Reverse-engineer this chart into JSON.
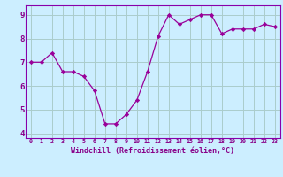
{
  "x": [
    0,
    1,
    2,
    3,
    4,
    5,
    6,
    7,
    8,
    9,
    10,
    11,
    12,
    13,
    14,
    15,
    16,
    17,
    18,
    19,
    20,
    21,
    22,
    23
  ],
  "y": [
    7.0,
    7.0,
    7.4,
    6.6,
    6.6,
    6.4,
    5.8,
    4.4,
    4.4,
    4.8,
    5.4,
    6.6,
    8.1,
    9.0,
    8.6,
    8.8,
    9.0,
    9.0,
    8.2,
    8.4,
    8.4,
    8.4,
    8.6,
    8.5
  ],
  "xlabel": "Windchill (Refroidissement éolien,°C)",
  "ylim": [
    3.8,
    9.4
  ],
  "xlim": [
    -0.5,
    23.5
  ],
  "yticks": [
    4,
    5,
    6,
    7,
    8,
    9
  ],
  "xticks": [
    0,
    1,
    2,
    3,
    4,
    5,
    6,
    7,
    8,
    9,
    10,
    11,
    12,
    13,
    14,
    15,
    16,
    17,
    18,
    19,
    20,
    21,
    22,
    23
  ],
  "line_color": "#990099",
  "marker_color": "#990099",
  "bg_color": "#cceeff",
  "grid_color": "#aacccc",
  "spine_color": "#8800aa",
  "tick_color": "#880088",
  "label_color": "#880088"
}
